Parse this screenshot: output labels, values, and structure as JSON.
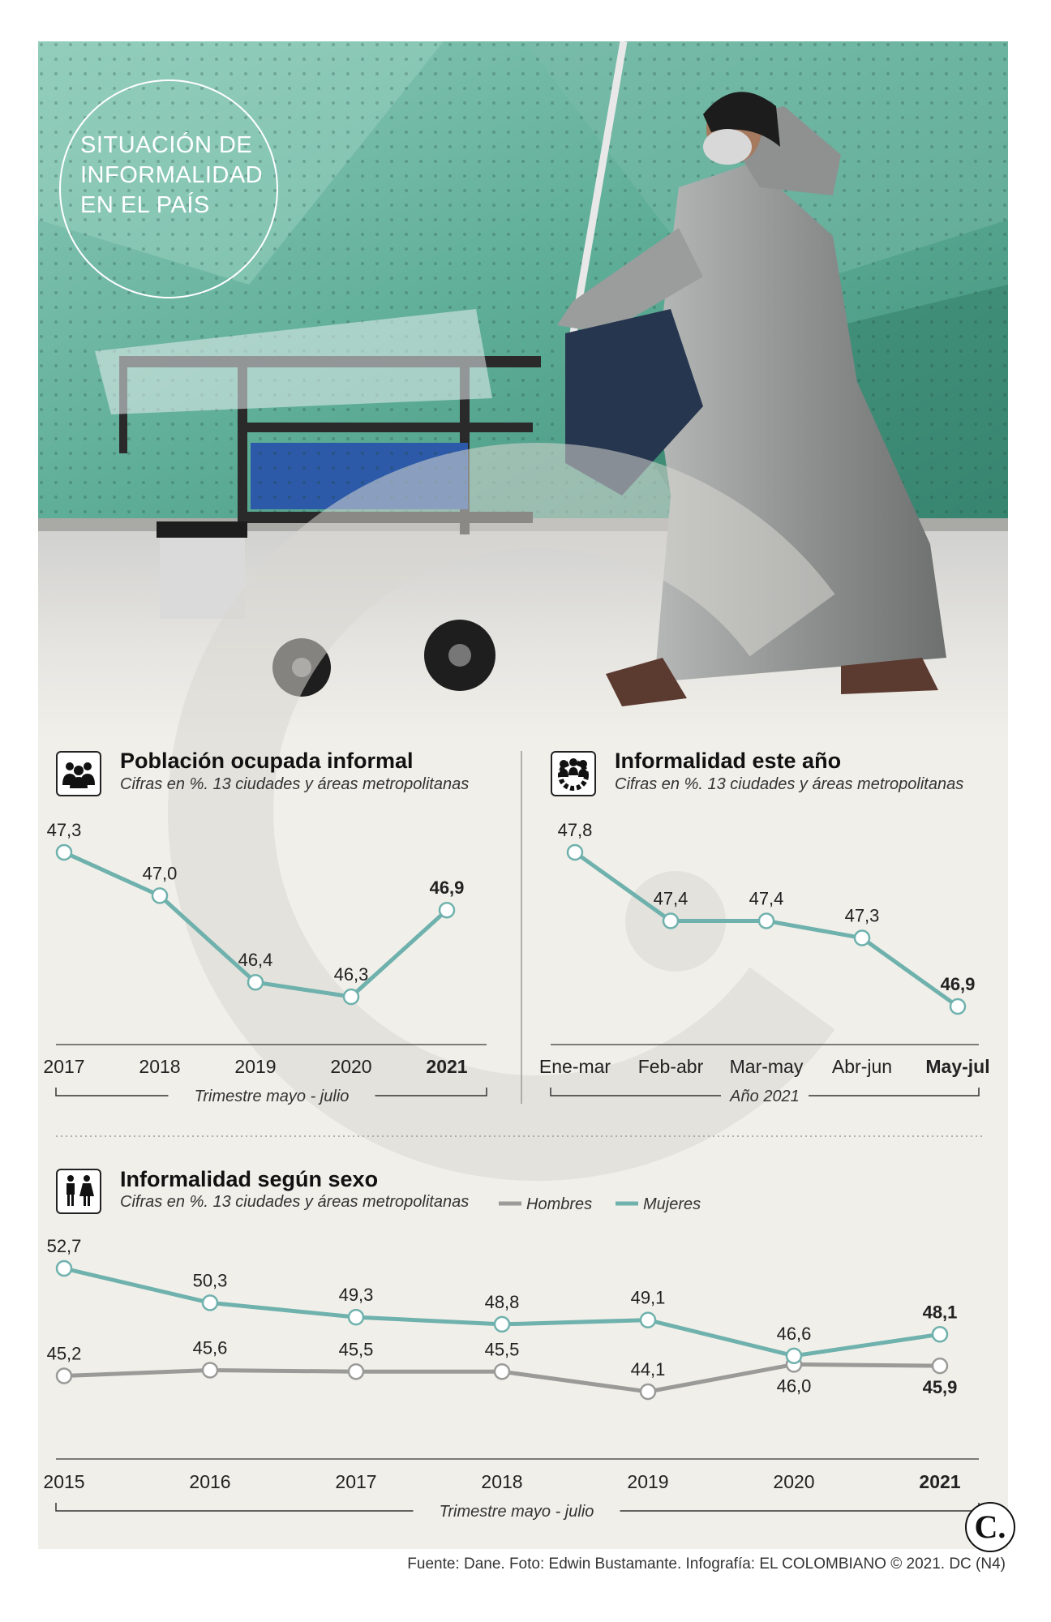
{
  "header": {
    "title_lines": [
      "SITUACIÓN DE",
      "INFORMALIDAD",
      "EN EL PAÍS"
    ]
  },
  "panels": {
    "poblacion": {
      "title": "Población ocupada informal",
      "subtitle": "Cifras en %. 13 ciudades y áreas metropolitanas",
      "bracket_label": "Trimestre mayo - julio",
      "icon": "people-group-icon"
    },
    "este_anio": {
      "title": "Informalidad este año",
      "subtitle": "Cifras en %. 13 ciudades y áreas metropolitanas",
      "bracket_label": "Año 2021",
      "icon": "people-gear-icon"
    },
    "sexo": {
      "title": "Informalidad según sexo",
      "subtitle": "Cifras en %. 13 ciudades y áreas metropolitanas",
      "bracket_label": "Trimestre mayo - julio",
      "icon": "man-woman-icon",
      "legend": [
        "Hombres",
        "Mujeres"
      ]
    }
  },
  "chart_data": [
    {
      "type": "line",
      "categories": [
        "2017",
        "2018",
        "2019",
        "2020",
        "2021"
      ],
      "values": [
        47.3,
        47.0,
        46.4,
        46.3,
        46.9
      ],
      "labels": [
        "47,3",
        "47,0",
        "46,4",
        "46,3",
        "46,9"
      ],
      "highlight_last": true,
      "ylim": [
        46.0,
        47.5
      ]
    },
    {
      "type": "line",
      "categories": [
        "Ene-mar",
        "Feb-abr",
        "Mar-may",
        "Abr-jun",
        "May-jul"
      ],
      "values": [
        47.8,
        47.4,
        47.4,
        47.3,
        46.9
      ],
      "labels": [
        "47,8",
        "47,4",
        "47,4",
        "47,3",
        "46,9"
      ],
      "highlight_last": true,
      "ylim": [
        46.8,
        48.0
      ]
    },
    {
      "type": "line",
      "categories": [
        "2015",
        "2016",
        "2017",
        "2018",
        "2019",
        "2020",
        "2021"
      ],
      "series": [
        {
          "name": "Hombres",
          "values": [
            45.2,
            45.6,
            45.5,
            45.5,
            44.1,
            46.0,
            45.9
          ],
          "labels": [
            "45,2",
            "45,6",
            "45,5",
            "45,5",
            "44,1",
            "46,0",
            "45,9"
          ]
        },
        {
          "name": "Mujeres",
          "values": [
            52.7,
            50.3,
            49.3,
            48.8,
            49.1,
            46.6,
            48.1
          ],
          "labels": [
            "52,7",
            "50,3",
            "49,3",
            "48,8",
            "49,1",
            "46,6",
            "48,1"
          ]
        }
      ],
      "highlight_last": true,
      "ylim": [
        43,
        54
      ]
    }
  ],
  "colors": {
    "teal": "#6fb1ad",
    "gray": "#9a9a98",
    "background": "#f1efe9"
  },
  "footer": {
    "credit": "Fuente: Dane. Foto: Edwin Bustamante. Infografía: EL COLOMBIANO © 2021. DC (N4)",
    "brand_mark": "C."
  }
}
